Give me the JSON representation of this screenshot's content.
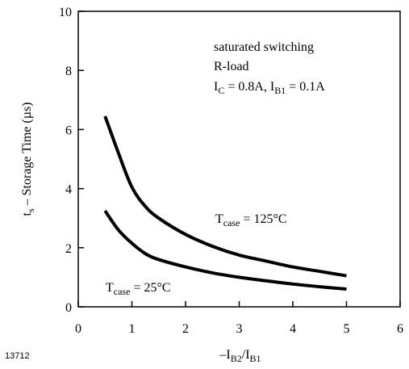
{
  "chart_data": {
    "type": "line",
    "xlabel_parts": [
      "–I",
      "B2",
      "/I",
      "B1"
    ],
    "ylabel_parts": [
      "t",
      "s",
      " – Storage Time (µs)"
    ],
    "figure_id": "13712",
    "xlim": [
      0,
      6
    ],
    "ylim": [
      0,
      10
    ],
    "xticks": [
      "0",
      "1",
      "2",
      "3",
      "4",
      "5",
      "6"
    ],
    "yticks": [
      "0",
      "2",
      "4",
      "6",
      "8",
      "10"
    ],
    "grid": false,
    "annotations": {
      "line1": "saturated switching",
      "line2": "R-load",
      "line3_parts": [
        "I",
        "C",
        " = 0.8A, I",
        "B1",
        " = 0.1A"
      ]
    },
    "series": [
      {
        "label_parts": [
          "T",
          "case",
          " = 125°C"
        ],
        "x": [
          0.5,
          0.75,
          1.0,
          1.25,
          1.5,
          2.0,
          2.5,
          3.0,
          3.5,
          4.0,
          4.5,
          5.0
        ],
        "y": [
          6.45,
          5.2,
          4.05,
          3.4,
          3.0,
          2.45,
          2.05,
          1.75,
          1.55,
          1.35,
          1.2,
          1.05
        ]
      },
      {
        "label_parts": [
          "T",
          "case",
          " = 25°C"
        ],
        "x": [
          0.5,
          0.75,
          1.0,
          1.25,
          1.5,
          2.0,
          2.5,
          3.0,
          3.5,
          4.0,
          4.5,
          5.0
        ],
        "y": [
          3.25,
          2.6,
          2.15,
          1.8,
          1.6,
          1.35,
          1.15,
          1.0,
          0.88,
          0.77,
          0.68,
          0.6
        ]
      }
    ]
  }
}
